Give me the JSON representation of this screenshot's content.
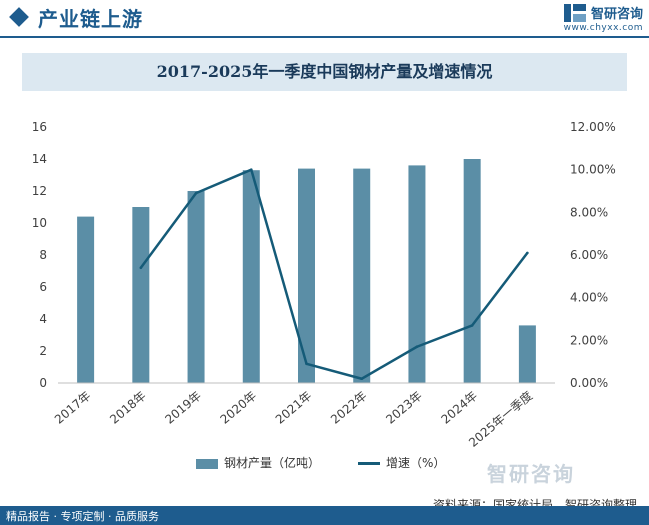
{
  "header": {
    "title": "产业链上游"
  },
  "brand": {
    "name": "智研咨询",
    "url": "www.chyxx.com"
  },
  "chart_title": "2017-2025年一季度中国钢材产量及增速情况",
  "chart_data": {
    "type": "bar+line",
    "title": "2017-2025年一季度中国钢材产量及增速情况",
    "categories": [
      "2017年",
      "2018年",
      "2019年",
      "2020年",
      "2021年",
      "2022年",
      "2023年",
      "2024年",
      "2025年一季度"
    ],
    "series": [
      {
        "name": "钢材产量（亿吨）",
        "type": "bar",
        "axis": "left",
        "color": "#5b8ea6",
        "values": [
          10.4,
          11.0,
          12.0,
          13.3,
          13.4,
          13.4,
          13.6,
          14.0,
          3.6
        ]
      },
      {
        "name": "增速（%）",
        "type": "line",
        "axis": "right",
        "color": "#155b78",
        "values": [
          null,
          5.4,
          8.9,
          10.0,
          0.9,
          0.2,
          1.7,
          2.7,
          6.1
        ]
      }
    ],
    "left_axis": {
      "min": 0,
      "max": 16,
      "step": 2,
      "ticks": [
        "0",
        "2",
        "4",
        "6",
        "8",
        "10",
        "12",
        "14",
        "16"
      ]
    },
    "right_axis": {
      "min": 0,
      "max": 12,
      "step": 2,
      "ticks": [
        "0.00%",
        "2.00%",
        "4.00%",
        "6.00%",
        "8.00%",
        "10.00%",
        "12.00%"
      ]
    },
    "grid": false,
    "legend": "bottom"
  },
  "legend": {
    "bar_label": "钢材产量（亿吨）",
    "line_label": "增速（%）"
  },
  "watermark": "智研咨询",
  "source": "资料来源：国家统计局、智研咨询整理",
  "footer": "精品报告 · 专项定制 · 品质服务",
  "colors": {
    "brand": "#1e5c8e",
    "bar": "#5b8ea6",
    "line": "#155b78",
    "title_bg": "#dce8f1"
  }
}
